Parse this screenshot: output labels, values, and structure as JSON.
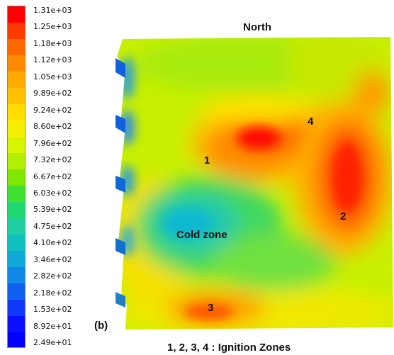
{
  "colorbar": {
    "ticks": [
      "1.31e+03",
      "1.25e+03",
      "1.18e+03",
      "1.12e+03",
      "1.05e+03",
      "9.89e+02",
      "9.24e+02",
      "8.60e+02",
      "7.96e+02",
      "7.32e+02",
      "6.67e+02",
      "6.03e+02",
      "5.39e+02",
      "4.75e+02",
      "4.10e+02",
      "3.46e+02",
      "2.82e+02",
      "2.18e+02",
      "1.53e+02",
      "8.92e+01",
      "2.49e+01"
    ],
    "colors": [
      "#ff0000",
      "#ff3a00",
      "#ff6a00",
      "#ff8c00",
      "#ffaa00",
      "#ffc000",
      "#ffdd00",
      "#f5f000",
      "#d8f500",
      "#b0ef00",
      "#80e800",
      "#40e030",
      "#20d870",
      "#20d0a0",
      "#10c0c0",
      "#10a8d8",
      "#1088e8",
      "#1060f0",
      "#1038f8",
      "#0a10ff",
      "#0000ff"
    ]
  },
  "labels": {
    "north": "North",
    "panel": "(b)",
    "caption": "1, 2, 3, 4 : Ignition Zones",
    "cold_zone": "Cold zone",
    "zone1": "1",
    "zone2": "2",
    "zone3": "3",
    "zone4": "4"
  }
}
